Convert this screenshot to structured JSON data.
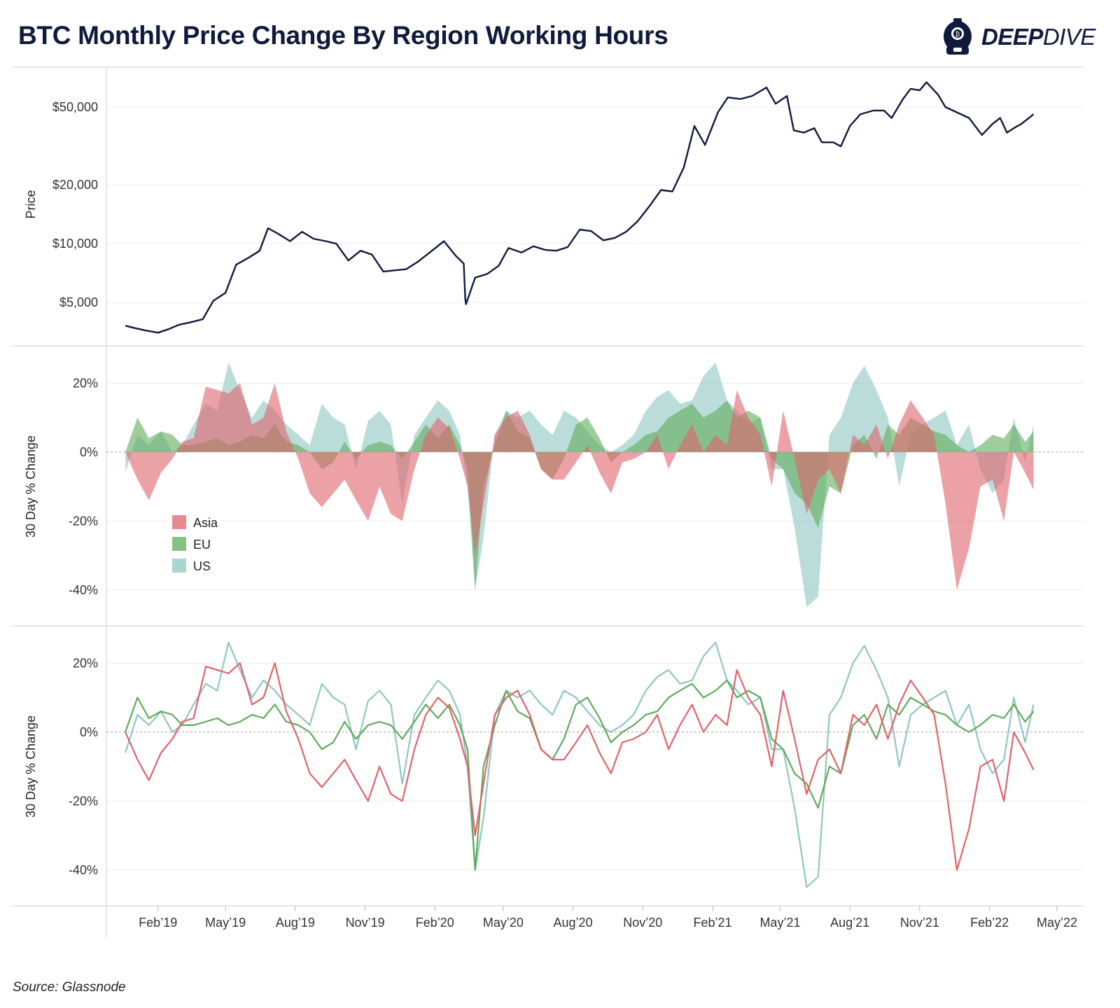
{
  "title": "BTC Monthly Price Change By Region Working Hours",
  "logo": {
    "text_bold": "DEEP",
    "text_light": "DIVE",
    "icon": "diving-helmet-icon"
  },
  "source": "Source: Glassnode",
  "colors": {
    "price": "#0f1a3c",
    "asia": "#e0636b",
    "eu": "#5fab5a",
    "us": "#8ec7c2",
    "grid": "#ececec",
    "zero": "#9a9a9a"
  },
  "chart_data": [
    {
      "type": "line",
      "ylabel": "Price",
      "yscale": "log",
      "yticks": [
        5000,
        10000,
        20000,
        50000
      ],
      "ytick_labels": [
        "$5,000",
        "$10,000",
        "$20,000",
        "$50,000"
      ],
      "ylim": [
        3000,
        80000
      ],
      "series": [
        {
          "values_x": [
            "2018-12-20",
            "2019-01-01",
            "2019-01-15",
            "2019-02-01",
            "2019-02-15",
            "2019-03-01",
            "2019-03-15",
            "2019-04-01",
            "2019-04-15",
            "2019-05-01",
            "2019-05-15",
            "2019-06-01",
            "2019-06-15",
            "2019-06-26",
            "2019-07-10",
            "2019-07-25",
            "2019-08-10",
            "2019-08-25",
            "2019-09-10",
            "2019-09-24",
            "2019-10-10",
            "2019-10-26",
            "2019-11-10",
            "2019-11-25",
            "2019-12-10",
            "2019-12-25",
            "2020-01-10",
            "2020-01-25",
            "2020-02-13",
            "2020-02-28",
            "2020-03-10",
            "2020-03-12",
            "2020-03-13",
            "2020-03-25",
            "2020-04-10",
            "2020-04-25",
            "2020-05-08",
            "2020-05-25",
            "2020-06-10",
            "2020-06-25",
            "2020-07-10",
            "2020-07-25",
            "2020-08-10",
            "2020-08-25",
            "2020-09-10",
            "2020-09-25",
            "2020-10-10",
            "2020-10-25",
            "2020-11-10",
            "2020-11-25",
            "2020-12-10",
            "2020-12-25",
            "2021-01-08",
            "2021-01-22",
            "2021-02-08",
            "2021-02-21",
            "2021-03-10",
            "2021-03-25",
            "2021-04-13",
            "2021-04-25",
            "2021-05-10",
            "2021-05-19",
            "2021-06-01",
            "2021-06-15",
            "2021-06-25",
            "2021-07-10",
            "2021-07-20",
            "2021-08-01",
            "2021-08-15",
            "2021-09-01",
            "2021-09-15",
            "2021-09-25",
            "2021-10-10",
            "2021-10-20",
            "2021-11-01",
            "2021-11-10",
            "2021-11-25",
            "2021-12-05",
            "2021-12-20",
            "2022-01-05",
            "2022-01-22",
            "2022-02-05",
            "2022-02-15",
            "2022-02-24",
            "2022-03-05",
            "2022-03-15",
            "2022-03-25",
            "2022-03-31"
          ],
          "values_y": [
            3800,
            3700,
            3600,
            3500,
            3650,
            3850,
            3950,
            4100,
            5100,
            5600,
            7800,
            8500,
            9200,
            12000,
            11200,
            10300,
            11500,
            10600,
            10300,
            10000,
            8200,
            9200,
            8800,
            7200,
            7300,
            7400,
            8100,
            9000,
            10300,
            8700,
            7900,
            5200,
            4900,
            6700,
            7000,
            7700,
            9500,
            9000,
            9700,
            9300,
            9200,
            9600,
            11800,
            11600,
            10400,
            10700,
            11500,
            13000,
            15600,
            18800,
            18500,
            24500,
            40000,
            32000,
            47000,
            56000,
            55000,
            57000,
            63000,
            52000,
            57000,
            38000,
            37000,
            39000,
            33000,
            33000,
            31500,
            40000,
            46000,
            48000,
            48000,
            44000,
            55000,
            62000,
            61000,
            67000,
            58000,
            50000,
            47000,
            44000,
            36000,
            41000,
            44000,
            37000,
            39000,
            41000,
            44000,
            46000
          ]
        }
      ]
    },
    {
      "type": "area",
      "ylabel": "30 Day % Change",
      "yticks": [
        -40,
        -20,
        0,
        20
      ],
      "ytick_labels": [
        "-40%",
        "-20%",
        "0%",
        "20%"
      ],
      "ylim": [
        -50,
        30
      ],
      "legend": {
        "placement": "middle-left",
        "entries": [
          "Asia",
          "EU",
          "US"
        ]
      },
      "series_ref": "shared_series"
    },
    {
      "type": "line",
      "ylabel": "30 Day % Change",
      "yticks": [
        -40,
        -20,
        0,
        20
      ],
      "ytick_labels": [
        "-40%",
        "-20%",
        "0%",
        "20%"
      ],
      "ylim": [
        -50,
        30
      ],
      "series_ref": "shared_series"
    }
  ],
  "shared_series": {
    "x": [
      "2018-12-20",
      "2019-01-05",
      "2019-01-20",
      "2019-02-05",
      "2019-02-20",
      "2019-03-05",
      "2019-03-20",
      "2019-04-05",
      "2019-04-20",
      "2019-05-05",
      "2019-05-20",
      "2019-06-05",
      "2019-06-20",
      "2019-07-05",
      "2019-07-20",
      "2019-08-05",
      "2019-08-20",
      "2019-09-05",
      "2019-09-20",
      "2019-10-05",
      "2019-10-20",
      "2019-11-05",
      "2019-11-20",
      "2019-12-05",
      "2019-12-20",
      "2020-01-05",
      "2020-01-20",
      "2020-02-05",
      "2020-02-20",
      "2020-03-05",
      "2020-03-15",
      "2020-03-25",
      "2020-04-05",
      "2020-04-20",
      "2020-05-05",
      "2020-05-20",
      "2020-06-05",
      "2020-06-20",
      "2020-07-05",
      "2020-07-20",
      "2020-08-05",
      "2020-08-20",
      "2020-09-05",
      "2020-09-20",
      "2020-10-05",
      "2020-10-20",
      "2020-11-05",
      "2020-11-20",
      "2020-12-05",
      "2020-12-20",
      "2021-01-05",
      "2021-01-20",
      "2021-02-05",
      "2021-02-20",
      "2021-03-05",
      "2021-03-20",
      "2021-04-05",
      "2021-04-20",
      "2021-05-05",
      "2021-05-20",
      "2021-06-05",
      "2021-06-20",
      "2021-07-05",
      "2021-07-20",
      "2021-08-05",
      "2021-08-20",
      "2021-09-05",
      "2021-09-20",
      "2021-10-05",
      "2021-10-20",
      "2021-11-05",
      "2021-11-20",
      "2021-12-05",
      "2021-12-20",
      "2022-01-05",
      "2022-01-20",
      "2022-02-05",
      "2022-02-20",
      "2022-03-05",
      "2022-03-20",
      "2022-03-31"
    ],
    "series": [
      {
        "name": "Asia",
        "values": [
          0,
          -8,
          -14,
          -6,
          -2,
          3,
          4,
          19,
          18,
          17,
          20,
          8,
          10,
          20,
          6,
          -2,
          -12,
          -16,
          -12,
          -8,
          -14,
          -20,
          -10,
          -18,
          -20,
          -5,
          5,
          10,
          7,
          -2,
          -10,
          -30,
          -15,
          5,
          10,
          12,
          5,
          -5,
          -8,
          -8,
          -3,
          2,
          -6,
          -12,
          -3,
          -2,
          0,
          5,
          -5,
          2,
          8,
          0,
          5,
          2,
          18,
          10,
          5,
          -10,
          12,
          -2,
          -18,
          -8,
          -5,
          -12,
          5,
          2,
          8,
          -2,
          8,
          15,
          10,
          5,
          -15,
          -40,
          -28,
          -10,
          -8,
          -20,
          0,
          -6,
          -11
        ]
      },
      {
        "name": "EU",
        "values": [
          0,
          10,
          4,
          6,
          5,
          2,
          2,
          3,
          4,
          2,
          3,
          5,
          4,
          8,
          3,
          2,
          0,
          -5,
          -3,
          3,
          -2,
          2,
          3,
          2,
          -2,
          3,
          8,
          4,
          8,
          2,
          -5,
          -40,
          -10,
          2,
          12,
          6,
          4,
          -5,
          -8,
          -2,
          8,
          10,
          4,
          -3,
          0,
          2,
          5,
          6,
          10,
          12,
          14,
          10,
          12,
          15,
          10,
          12,
          10,
          -2,
          -5,
          -12,
          -15,
          -22,
          -10,
          -12,
          2,
          5,
          -2,
          8,
          5,
          10,
          8,
          6,
          5,
          2,
          0,
          2,
          5,
          4,
          8,
          3,
          6
        ]
      },
      {
        "name": "US",
        "values": [
          -6,
          5,
          2,
          6,
          0,
          2,
          8,
          14,
          12,
          26,
          18,
          10,
          15,
          12,
          8,
          5,
          2,
          14,
          10,
          8,
          -5,
          9,
          12,
          8,
          -15,
          5,
          10,
          15,
          12,
          5,
          -10,
          -40,
          -25,
          5,
          12,
          10,
          12,
          8,
          5,
          12,
          10,
          6,
          2,
          0,
          2,
          5,
          12,
          16,
          18,
          14,
          15,
          22,
          26,
          15,
          12,
          8,
          10,
          -5,
          -5,
          -22,
          -45,
          -42,
          5,
          10,
          20,
          25,
          18,
          10,
          -10,
          5,
          8,
          10,
          12,
          2,
          8,
          -5,
          -12,
          -8,
          10,
          -3,
          8
        ]
      }
    ]
  },
  "x_axis": {
    "ticks": [
      "2019-02-01",
      "2019-05-01",
      "2019-08-01",
      "2019-11-01",
      "2020-02-01",
      "2020-05-01",
      "2020-08-01",
      "2020-11-01",
      "2021-02-01",
      "2021-05-01",
      "2021-08-01",
      "2021-11-01",
      "2022-02-01",
      "2022-05-01"
    ],
    "labels": [
      "Feb’19",
      "May’19",
      "Aug’19",
      "Nov’19",
      "Feb’20",
      "May’20",
      "Aug’20",
      "Nov’20",
      "Feb’21",
      "May’21",
      "Aug’21",
      "Nov’21",
      "Feb’22",
      "May’22"
    ],
    "domain": [
      "2018-11-25",
      "2022-06-05"
    ]
  }
}
